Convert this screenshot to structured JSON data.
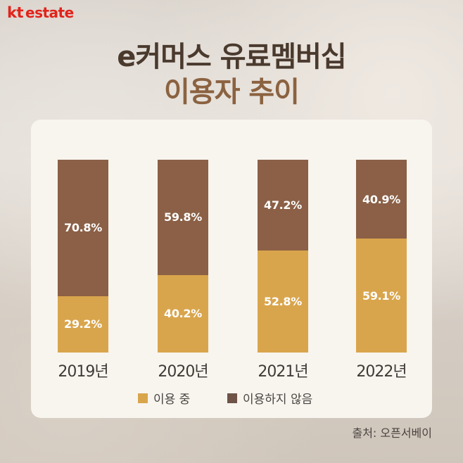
{
  "brand": {
    "logo_kt": "kt",
    "logo_estate": "estate",
    "logo_color": "#e2231a"
  },
  "title": {
    "line1": "e커머스 유료멤버십",
    "line2": "이용자 추이"
  },
  "chart_data": {
    "type": "bar",
    "stacked": true,
    "percent": true,
    "categories": [
      "2019년",
      "2020년",
      "2021년",
      "2022년"
    ],
    "series": [
      {
        "name": "이용 중",
        "values": [
          29.2,
          40.2,
          52.8,
          59.1
        ],
        "color": "#d9a54c"
      },
      {
        "name": "이용하지 않음",
        "values": [
          70.8,
          59.8,
          47.2,
          40.9
        ],
        "color": "#8b6046"
      }
    ],
    "ylim": [
      0,
      100
    ],
    "legend_position": "bottom",
    "grid": false
  },
  "labels": {
    "used": [
      "29.2%",
      "40.2%",
      "52.8%",
      "59.1%"
    ],
    "notused": [
      "70.8%",
      "59.8%",
      "47.2%",
      "40.9%"
    ]
  },
  "legend": {
    "used": "이용 중",
    "notused": "이용하지 않음"
  },
  "source": "출처: 오픈서베이"
}
